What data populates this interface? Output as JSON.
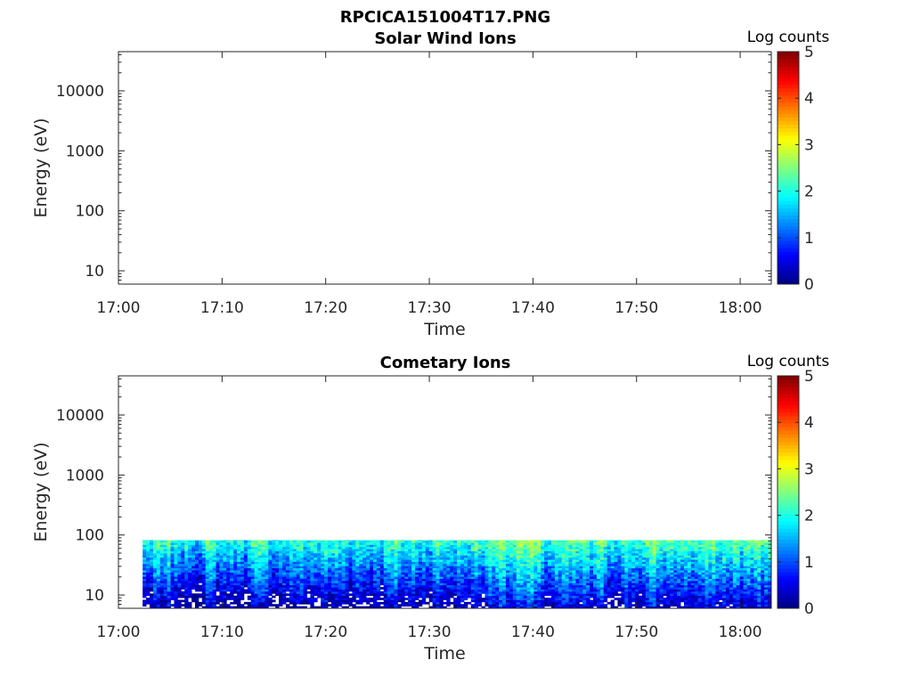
{
  "figure_title": "RPCICA151004T17.PNG",
  "chart_data": [
    {
      "type": "heatmap",
      "title": "Solar Wind Ions",
      "xlabel": "Time",
      "ylabel": "Energy (eV)",
      "y_scale": "log",
      "ylim": [
        6,
        45000
      ],
      "xlim": [
        "17:00",
        "18:03"
      ],
      "x_ticks": [
        "17:00",
        "17:10",
        "17:20",
        "17:30",
        "17:40",
        "17:50",
        "18:00"
      ],
      "y_ticks": [
        "10",
        "100",
        "1000",
        "10000"
      ],
      "colorbar": {
        "label": "Log counts",
        "range": [
          0,
          5
        ],
        "ticks": [
          "0",
          "1",
          "2",
          "3",
          "4",
          "5"
        ],
        "colormap": "jet"
      },
      "data_extent": null,
      "note_values": "empty panel - no counts"
    },
    {
      "type": "heatmap",
      "title": "Cometary Ions",
      "xlabel": "Time",
      "ylabel": "Energy (eV)",
      "y_scale": "log",
      "ylim": [
        6,
        45000
      ],
      "xlim": [
        "17:00",
        "18:03"
      ],
      "x_ticks": [
        "17:00",
        "17:10",
        "17:20",
        "17:30",
        "17:40",
        "17:50",
        "18:00"
      ],
      "y_ticks": [
        "10",
        "100",
        "1000",
        "10000"
      ],
      "colorbar": {
        "label": "Log counts",
        "range": [
          0,
          5
        ],
        "ticks": [
          "0",
          "1",
          "2",
          "3",
          "4",
          "5"
        ],
        "colormap": "jet"
      },
      "data_extent": {
        "time_start": "17:02:20",
        "time_end": "18:03",
        "energy_min": 6,
        "energy_max": 82
      },
      "typical_log_counts": {
        "low_energy": [
          0,
          1
        ],
        "high_energy": [
          1.5,
          2.5
        ],
        "peak": 2.8
      }
    }
  ]
}
